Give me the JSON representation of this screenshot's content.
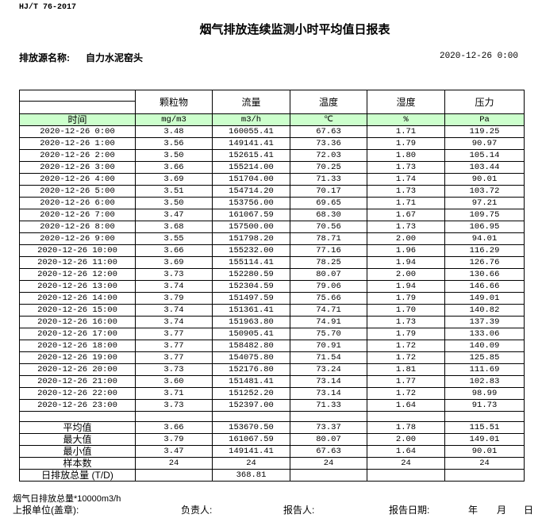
{
  "standard": "HJ/T  76-2017",
  "title": "烟气排放连续监测小时平均值日报表",
  "source_label": "排放源名称:",
  "source_value": "自力水泥窑头",
  "report_datetime": "2020-12-26  0:00",
  "columns": [
    "颗粒物",
    "流量",
    "温度",
    "湿度",
    "压力"
  ],
  "time_label": "时间",
  "units": [
    "mg/m3",
    "m3/h",
    "℃",
    "%",
    "Pa"
  ],
  "rows": [
    [
      "2020-12-26  0:00",
      "3.48",
      "160055.41",
      "67.63",
      "1.71",
      "119.25"
    ],
    [
      "2020-12-26  1:00",
      "3.56",
      "149141.41",
      "73.36",
      "1.79",
      "90.97"
    ],
    [
      "2020-12-26  2:00",
      "3.50",
      "152615.41",
      "72.03",
      "1.80",
      "105.14"
    ],
    [
      "2020-12-26  3:00",
      "3.66",
      "155214.00",
      "70.25",
      "1.73",
      "103.44"
    ],
    [
      "2020-12-26  4:00",
      "3.69",
      "151704.00",
      "71.33",
      "1.74",
      "90.01"
    ],
    [
      "2020-12-26  5:00",
      "3.51",
      "154714.20",
      "70.17",
      "1.73",
      "103.72"
    ],
    [
      "2020-12-26  6:00",
      "3.50",
      "153756.00",
      "69.65",
      "1.71",
      "97.21"
    ],
    [
      "2020-12-26  7:00",
      "3.47",
      "161067.59",
      "68.30",
      "1.67",
      "109.75"
    ],
    [
      "2020-12-26  8:00",
      "3.68",
      "157500.00",
      "70.56",
      "1.73",
      "106.95"
    ],
    [
      "2020-12-26  9:00",
      "3.55",
      "151798.20",
      "78.71",
      "2.00",
      "94.01"
    ],
    [
      "2020-12-26 10:00",
      "3.66",
      "155232.00",
      "77.16",
      "1.96",
      "116.29"
    ],
    [
      "2020-12-26 11:00",
      "3.69",
      "155114.41",
      "78.25",
      "1.94",
      "126.76"
    ],
    [
      "2020-12-26 12:00",
      "3.73",
      "152280.59",
      "80.07",
      "2.00",
      "130.66"
    ],
    [
      "2020-12-26 13:00",
      "3.74",
      "152304.59",
      "79.06",
      "1.94",
      "146.66"
    ],
    [
      "2020-12-26 14:00",
      "3.79",
      "151497.59",
      "75.66",
      "1.79",
      "149.01"
    ],
    [
      "2020-12-26 15:00",
      "3.74",
      "151361.41",
      "74.71",
      "1.70",
      "140.82"
    ],
    [
      "2020-12-26 16:00",
      "3.74",
      "151963.80",
      "74.91",
      "1.73",
      "137.39"
    ],
    [
      "2020-12-26 17:00",
      "3.77",
      "150905.41",
      "75.70",
      "1.79",
      "133.06"
    ],
    [
      "2020-12-26 18:00",
      "3.77",
      "158482.80",
      "70.91",
      "1.72",
      "140.09"
    ],
    [
      "2020-12-26 19:00",
      "3.77",
      "154075.80",
      "71.54",
      "1.72",
      "125.85"
    ],
    [
      "2020-12-26 20:00",
      "3.73",
      "152176.80",
      "73.24",
      "1.81",
      "111.69"
    ],
    [
      "2020-12-26 21:00",
      "3.60",
      "151481.41",
      "73.14",
      "1.77",
      "102.83"
    ],
    [
      "2020-12-26 22:00",
      "3.71",
      "151252.20",
      "73.14",
      "1.72",
      "98.99"
    ],
    [
      "2020-12-26 23:00",
      "3.73",
      "152397.00",
      "71.33",
      "1.64",
      "91.73"
    ]
  ],
  "summary": [
    [
      "平均值",
      "3.66",
      "153670.50",
      "73.37",
      "1.78",
      "115.51"
    ],
    [
      "最大值",
      "3.79",
      "161067.59",
      "80.07",
      "2.00",
      "149.01"
    ],
    [
      "最小值",
      "3.47",
      "149141.41",
      "67.63",
      "1.64",
      "90.01"
    ],
    [
      "样本数",
      "24",
      "24",
      "24",
      "24",
      "24"
    ],
    [
      "日排放总量 (T/D)",
      "",
      "368.81",
      "",
      "",
      ""
    ]
  ],
  "footer": {
    "note": "烟气日排放总量*10000m3/h",
    "unit_label": "上报单位(盖章):",
    "responsible_label": "负责人:",
    "reporter_label": "报告人:",
    "report_date_label": "报告日期:",
    "year": "年",
    "month": "月",
    "day": "日"
  }
}
